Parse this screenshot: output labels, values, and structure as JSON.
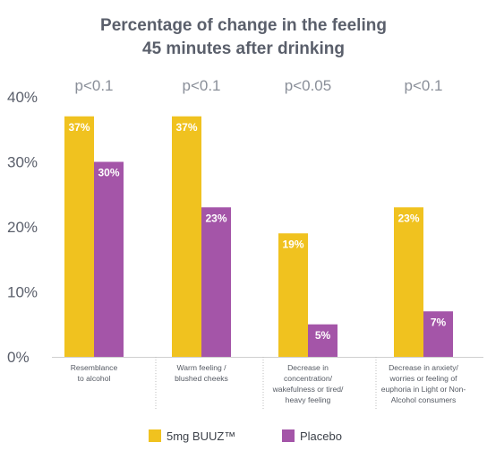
{
  "chart_data": {
    "type": "bar",
    "title": "Percentage of change in the feeling",
    "subtitle": "45 minutes after drinking",
    "categories": [
      [
        "Resemblance",
        "to alcohol"
      ],
      [
        "Warm feeling /",
        "blushed cheeks"
      ],
      [
        "Decrease in",
        "concentration/",
        "wakefulness or tired/",
        "heavy feeling"
      ],
      [
        "Decrease in anxiety/",
        "worries or feeling of",
        "euphoria in Light or Non-",
        "Alcohol consumers"
      ]
    ],
    "p_values": [
      "p<0.1",
      "p<0.1",
      "p<0.05",
      "p<0.1"
    ],
    "series": [
      {
        "name": "5mg BUUZ™",
        "color": "#f0c21f",
        "values": [
          37,
          37,
          19,
          23
        ],
        "labels": [
          "37%",
          "37%",
          "19%",
          "23%"
        ]
      },
      {
        "name": "Placebo",
        "color": "#a455a8",
        "values": [
          30,
          23,
          5,
          7
        ],
        "labels": [
          "30%",
          "23%",
          "5%",
          "7%"
        ]
      }
    ],
    "ylim": [
      0,
      40
    ],
    "yticks": [
      {
        "value": 0,
        "label": "0%"
      },
      {
        "value": 10,
        "label": "10%"
      },
      {
        "value": 20,
        "label": "20%"
      },
      {
        "value": 30,
        "label": "30%"
      },
      {
        "value": 40,
        "label": "40%"
      }
    ],
    "legend_position": "bottom"
  }
}
